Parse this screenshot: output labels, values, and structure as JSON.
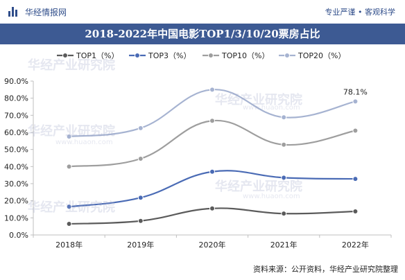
{
  "header": {
    "brand": "华经情报网",
    "tagline": "专业严谨 • 客观科学"
  },
  "title": "2018-2022年中国电影TOP1/3/10/20票房占比",
  "footer": "资料来源：公开资料，华经产业研究院整理",
  "watermark": "华经产业研究院",
  "watermark_url": "www.huaon.com",
  "colors": {
    "top_bar_accent": "#2f4d8a",
    "title_bg": "#3d5a93"
  },
  "chart_data": {
    "type": "line",
    "categories": [
      "2018年",
      "2019年",
      "2020年",
      "2021年",
      "2022年"
    ],
    "series": [
      {
        "name": "TOP1（%）",
        "color": "#5b5b5b",
        "values": [
          6.5,
          8.2,
          15.5,
          12.5,
          13.8
        ]
      },
      {
        "name": "TOP3（%）",
        "color": "#4a6bb5",
        "values": [
          16.5,
          21.8,
          37.0,
          33.5,
          32.8
        ]
      },
      {
        "name": "TOP10（%）",
        "color": "#9e9e9e",
        "values": [
          40.0,
          44.6,
          66.8,
          52.8,
          61.0
        ]
      },
      {
        "name": "TOP20（%）",
        "color": "#a6b3d1",
        "values": [
          57.5,
          62.5,
          85.0,
          68.8,
          78.1
        ]
      }
    ],
    "annotations": [
      {
        "series": "TOP20（%）",
        "category": "2022年",
        "text": "78.1%"
      }
    ],
    "ylim": [
      0,
      90
    ],
    "yticks": [
      "0.0%",
      "10.0%",
      "20.0%",
      "30.0%",
      "40.0%",
      "50.0%",
      "60.0%",
      "70.0%",
      "80.0%",
      "90.0%"
    ],
    "grid": false,
    "legend": "top"
  }
}
